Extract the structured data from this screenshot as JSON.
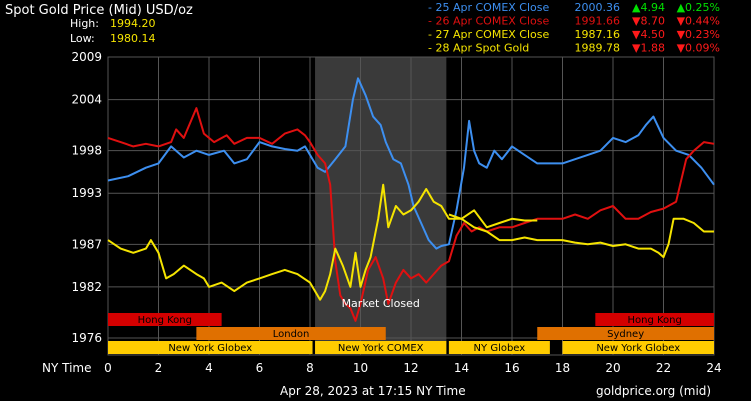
{
  "header": {
    "title": "Spot Gold Price (Mid) USD/oz",
    "high_label": "High:",
    "high_value": "1994.20",
    "low_label": "Low:",
    "low_value": "1980.14"
  },
  "legend": [
    {
      "label": "- 25 Apr COMEX Close",
      "price": "2000.36",
      "change": "▲4.94",
      "pct": "▲0.25%",
      "color": "#3d8ff0",
      "change_color": "#00e000"
    },
    {
      "label": "- 26 Apr COMEX Close",
      "price": "1991.66",
      "change": "▼8.70",
      "pct": "▼0.44%",
      "color": "#e01010",
      "change_color": "#ff1a1a"
    },
    {
      "label": "- 27 Apr COMEX Close",
      "price": "1987.16",
      "change": "▼4.50",
      "pct": "▼0.23%",
      "color": "#f5e400",
      "change_color": "#ff1a1a"
    },
    {
      "label": "- 28 Apr Spot Gold",
      "price": "1989.78",
      "change": "▼1.88",
      "pct": "▼0.09%",
      "color": "#f5e400",
      "change_color": "#ff1a1a"
    }
  ],
  "market_closed_label": "Market Closed",
  "x_axis_label": "NY Time",
  "footer": {
    "timestamp": "Apr 28, 2023 at 17:15 NY Time",
    "source": "goldprice.org (mid)"
  },
  "sessions": [
    {
      "name": "Hong Kong",
      "start": 0,
      "end": 4.5,
      "color": "#d40000"
    },
    {
      "name": "Hong Kong",
      "start": 19.3,
      "end": 24,
      "color": "#d40000"
    },
    {
      "name": "London",
      "start": 3.5,
      "end": 11,
      "color": "#e07000"
    },
    {
      "name": "Sydney",
      "start": 17,
      "end": 24,
      "color": "#e07000"
    },
    {
      "name": "New York Globex",
      "start": 0,
      "end": 8.1,
      "color": "#ffcc00"
    },
    {
      "name": "New York COMEX",
      "start": 8.2,
      "end": 13.4,
      "color": "#ffcc00"
    },
    {
      "name": "NY Globex",
      "start": 13.5,
      "end": 17.5,
      "color": "#ffcc00"
    },
    {
      "name": "New York Globex",
      "start": 18,
      "end": 24,
      "color": "#ffcc00"
    }
  ],
  "chart_data": {
    "type": "line",
    "x_range": [
      0,
      24
    ],
    "y_range": [
      1974,
      2009
    ],
    "y_ticks": [
      "2009",
      "2004",
      "1998",
      "1993",
      "1987",
      "1982",
      "1976"
    ],
    "y_tick_values": [
      2009,
      2004,
      1998,
      1993,
      1987,
      1982,
      1976
    ],
    "x_ticks": [
      "0",
      "2",
      "4",
      "6",
      "8",
      "10",
      "12",
      "14",
      "16",
      "18",
      "20",
      "22",
      "24"
    ],
    "x_tick_values": [
      0,
      2,
      4,
      6,
      8,
      10,
      12,
      14,
      16,
      18,
      20,
      22,
      24
    ],
    "market_closed_range": [
      8.2,
      13.4
    ],
    "grid": true,
    "series": [
      {
        "name": "25 Apr COMEX Close",
        "color": "#3d8ff0",
        "points": [
          [
            0,
            1994.5
          ],
          [
            0.8,
            1995
          ],
          [
            1.5,
            1996
          ],
          [
            2,
            1996.5
          ],
          [
            2.5,
            1998.5
          ],
          [
            3,
            1997.2
          ],
          [
            3.5,
            1998
          ],
          [
            4,
            1997.5
          ],
          [
            4.6,
            1998
          ],
          [
            5,
            1996.5
          ],
          [
            5.5,
            1997
          ],
          [
            6,
            1999
          ],
          [
            6.5,
            1998.5
          ],
          [
            7,
            1998.2
          ],
          [
            7.5,
            1998
          ],
          [
            7.8,
            1998.5
          ],
          [
            8,
            1997.5
          ],
          [
            8.3,
            1996
          ],
          [
            8.6,
            1995.5
          ],
          [
            9,
            1997
          ],
          [
            9.4,
            1998.5
          ],
          [
            9.7,
            2004
          ],
          [
            9.9,
            2006.5
          ],
          [
            10.2,
            2004.5
          ],
          [
            10.5,
            2002
          ],
          [
            10.8,
            2001
          ],
          [
            11,
            1999
          ],
          [
            11.3,
            1997
          ],
          [
            11.6,
            1996.5
          ],
          [
            11.9,
            1994
          ],
          [
            12.1,
            1991.5
          ],
          [
            12.4,
            1989.5
          ],
          [
            12.7,
            1987.5
          ],
          [
            13,
            1986.5
          ],
          [
            13.2,
            1986.8
          ],
          [
            13.5,
            1987
          ],
          [
            13.8,
            1991
          ],
          [
            14.1,
            1996
          ],
          [
            14.3,
            2001.5
          ],
          [
            14.5,
            1998
          ],
          [
            14.7,
            1996.5
          ],
          [
            15,
            1996
          ],
          [
            15.3,
            1998
          ],
          [
            15.6,
            1997
          ],
          [
            16,
            1998.5
          ],
          [
            16.5,
            1997.5
          ],
          [
            17,
            1996.5
          ],
          [
            17.5,
            1996.5
          ],
          [
            18,
            1996.5
          ],
          [
            18.5,
            1997
          ],
          [
            19,
            1997.5
          ],
          [
            19.5,
            1998
          ],
          [
            20,
            1999.5
          ],
          [
            20.5,
            1999
          ],
          [
            21,
            1999.8
          ],
          [
            21.3,
            2001
          ],
          [
            21.6,
            2002
          ],
          [
            22,
            1999.5
          ],
          [
            22.5,
            1998
          ],
          [
            23,
            1997.5
          ],
          [
            23.5,
            1996
          ],
          [
            24,
            1994
          ]
        ]
      },
      {
        "name": "26 Apr COMEX Close",
        "color": "#e01010",
        "points": [
          [
            0,
            1999.5
          ],
          [
            0.5,
            1999
          ],
          [
            1,
            1998.5
          ],
          [
            1.5,
            1998.8
          ],
          [
            2,
            1998.5
          ],
          [
            2.5,
            1999
          ],
          [
            2.7,
            2000.5
          ],
          [
            3,
            1999.5
          ],
          [
            3.5,
            2003
          ],
          [
            3.8,
            2000
          ],
          [
            4.2,
            1999
          ],
          [
            4.7,
            1999.8
          ],
          [
            5,
            1998.8
          ],
          [
            5.5,
            1999.5
          ],
          [
            6,
            1999.5
          ],
          [
            6.5,
            1998.8
          ],
          [
            7,
            2000
          ],
          [
            7.5,
            2000.5
          ],
          [
            7.8,
            1999.8
          ],
          [
            8,
            1999
          ],
          [
            8.3,
            1997.5
          ],
          [
            8.6,
            1996.5
          ],
          [
            8.8,
            1994
          ],
          [
            9,
            1985
          ],
          [
            9.2,
            1981
          ],
          [
            9.4,
            1980
          ],
          [
            9.6,
            1979.5
          ],
          [
            9.8,
            1978
          ],
          [
            10,
            1980
          ],
          [
            10.3,
            1984
          ],
          [
            10.6,
            1985.5
          ],
          [
            10.9,
            1983
          ],
          [
            11.1,
            1980
          ],
          [
            11.4,
            1982.5
          ],
          [
            11.7,
            1984
          ],
          [
            12,
            1983
          ],
          [
            12.3,
            1983.5
          ],
          [
            12.6,
            1982.5
          ],
          [
            12.9,
            1983.5
          ],
          [
            13.2,
            1984.5
          ],
          [
            13.5,
            1985
          ],
          [
            13.8,
            1988
          ],
          [
            14.1,
            1989.5
          ],
          [
            14.4,
            1988.5
          ],
          [
            14.7,
            1989
          ],
          [
            15,
            1988.5
          ],
          [
            15.5,
            1989
          ],
          [
            16,
            1989
          ],
          [
            16.5,
            1989.5
          ],
          [
            17,
            1990
          ],
          [
            18,
            1990
          ],
          [
            18.5,
            1990.5
          ],
          [
            19,
            1990
          ],
          [
            19.5,
            1991
          ],
          [
            20,
            1991.5
          ],
          [
            20.5,
            1990
          ],
          [
            21,
            1990
          ],
          [
            21.5,
            1990.8
          ],
          [
            22,
            1991.2
          ],
          [
            22.5,
            1992
          ],
          [
            22.9,
            1997
          ],
          [
            23.2,
            1998
          ],
          [
            23.6,
            1999
          ],
          [
            24,
            1998.8
          ]
        ]
      },
      {
        "name": "27 Apr COMEX Close",
        "color": "#f5e400",
        "points": [
          [
            0,
            1987.5
          ],
          [
            0.5,
            1986.5
          ],
          [
            1,
            1986
          ],
          [
            1.5,
            1986.5
          ],
          [
            1.7,
            1987.5
          ],
          [
            2,
            1986
          ],
          [
            2.3,
            1983
          ],
          [
            2.6,
            1983.5
          ],
          [
            3,
            1984.5
          ],
          [
            3.5,
            1983.5
          ],
          [
            3.8,
            1983
          ],
          [
            4,
            1982
          ],
          [
            4.5,
            1982.5
          ],
          [
            5,
            1981.5
          ],
          [
            5.5,
            1982.5
          ],
          [
            6,
            1983
          ],
          [
            6.5,
            1983.5
          ],
          [
            7,
            1984
          ],
          [
            7.5,
            1983.5
          ],
          [
            8,
            1982.5
          ],
          [
            8.4,
            1980.5
          ],
          [
            8.6,
            1981.5
          ],
          [
            8.8,
            1983.5
          ],
          [
            9,
            1986.5
          ],
          [
            9.3,
            1984.5
          ],
          [
            9.6,
            1982
          ],
          [
            9.8,
            1986
          ],
          [
            10,
            1982
          ],
          [
            10.2,
            1984
          ],
          [
            10.4,
            1985.5
          ],
          [
            10.7,
            1990
          ],
          [
            10.9,
            1994
          ],
          [
            11.1,
            1989
          ],
          [
            11.4,
            1991.5
          ],
          [
            11.7,
            1990.5
          ],
          [
            12,
            1991
          ],
          [
            12.3,
            1992
          ],
          [
            12.6,
            1993.5
          ],
          [
            12.9,
            1992
          ],
          [
            13.2,
            1991.5
          ],
          [
            13.5,
            1990
          ],
          [
            14,
            1990
          ],
          [
            14.5,
            1991
          ],
          [
            15,
            1989
          ],
          [
            15.5,
            1989.5
          ],
          [
            16,
            1990
          ],
          [
            16.5,
            1989.8
          ],
          [
            17,
            1989.8
          ]
        ]
      },
      {
        "name": "28 Apr Spot Gold",
        "color": "#f5e400",
        "points": [
          [
            13.5,
            1990.5
          ],
          [
            14,
            1990
          ],
          [
            14.5,
            1989
          ],
          [
            15,
            1988.5
          ],
          [
            15.5,
            1987.5
          ],
          [
            16,
            1987.5
          ],
          [
            16.5,
            1987.8
          ],
          [
            17,
            1987.5
          ],
          [
            17.5,
            1987.5
          ],
          [
            18,
            1987.5
          ],
          [
            18.5,
            1987.2
          ],
          [
            19,
            1987
          ],
          [
            19.5,
            1987.2
          ],
          [
            20,
            1986.8
          ],
          [
            20.5,
            1987
          ],
          [
            21,
            1986.5
          ],
          [
            21.5,
            1986.5
          ],
          [
            21.8,
            1986
          ],
          [
            22,
            1985.5
          ],
          [
            22.2,
            1987
          ],
          [
            22.4,
            1990
          ],
          [
            22.8,
            1990
          ],
          [
            23.2,
            1989.5
          ],
          [
            23.6,
            1988.5
          ],
          [
            24,
            1988.5
          ]
        ]
      }
    ]
  }
}
